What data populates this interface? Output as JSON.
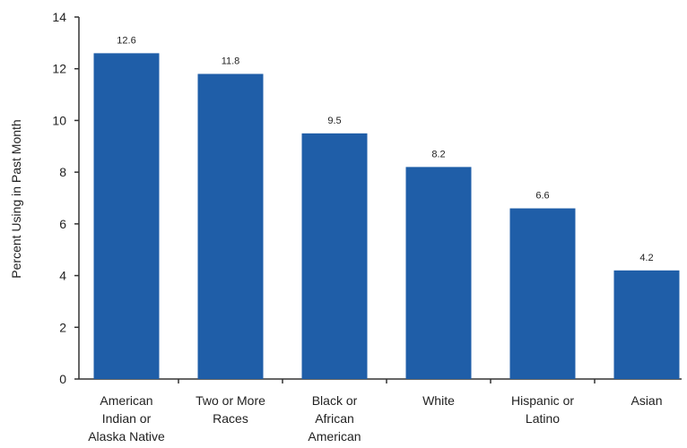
{
  "chart_data": {
    "type": "bar",
    "title": "",
    "xlabel": "",
    "ylabel": "Percent Using in Past Month",
    "ylim": [
      0,
      14
    ],
    "yticks": [
      0,
      2,
      4,
      6,
      8,
      10,
      12,
      14
    ],
    "grid": false,
    "categories": [
      [
        "American",
        "Indian or",
        "Alaska Native"
      ],
      [
        "Two or More",
        "Races"
      ],
      [
        "Black or",
        "African",
        "American"
      ],
      [
        "White"
      ],
      [
        "Hispanic or",
        "Latino"
      ],
      [
        "Asian"
      ]
    ],
    "values": [
      12.6,
      11.8,
      9.5,
      8.2,
      6.6,
      4.2
    ],
    "value_labels": [
      "12.6",
      "11.8",
      "9.5",
      "8.2",
      "6.6",
      "4.2"
    ],
    "bar_color": "#1f5ea8",
    "axis_color": "#333333"
  }
}
